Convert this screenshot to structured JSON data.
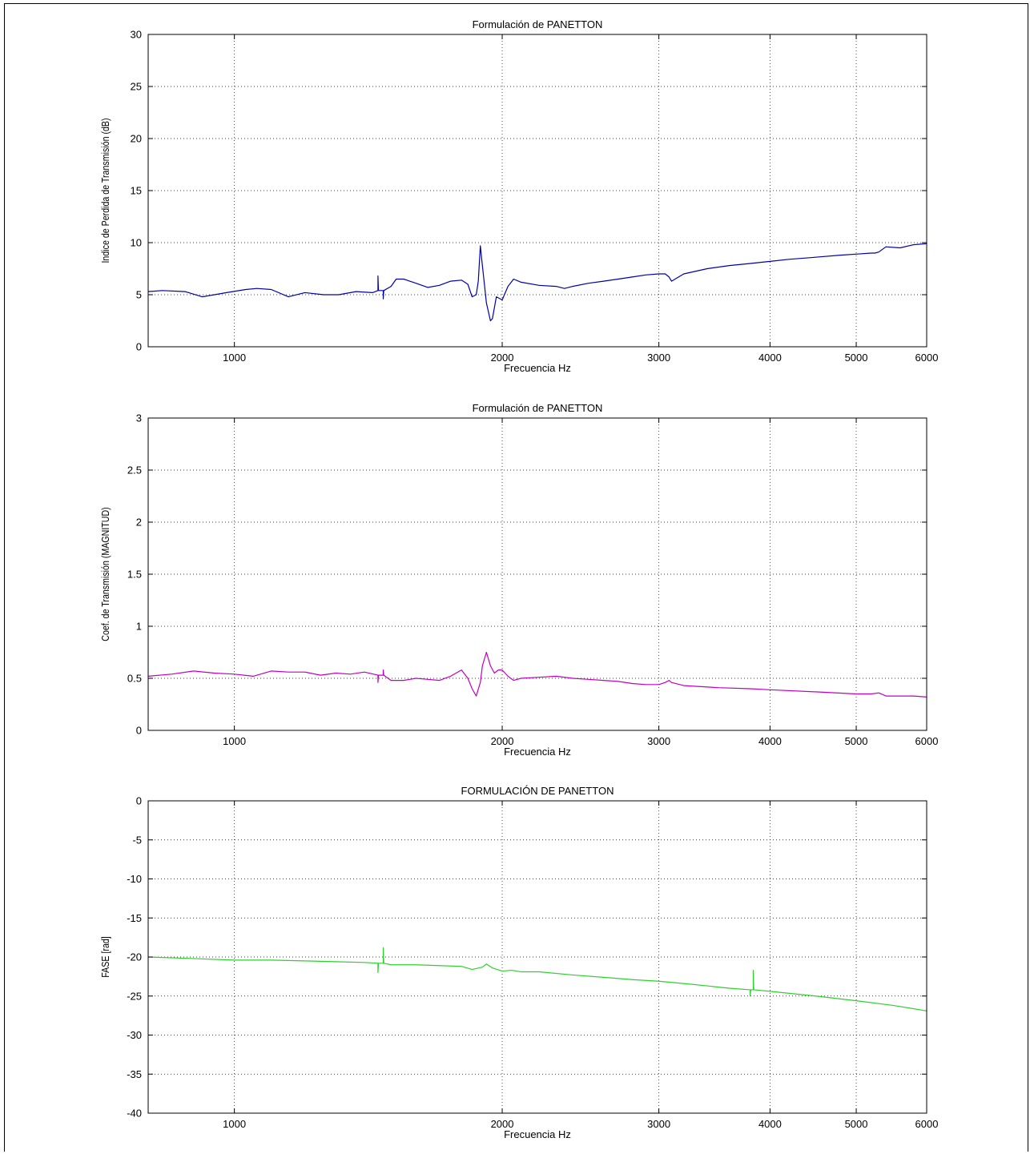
{
  "chart_data": [
    {
      "type": "line",
      "title": "Formulación de PANETTON",
      "xlabel": "Frecuencia Hz",
      "ylabel": "Indice de Perdida de Transmisión (dB)",
      "xscale": "log",
      "xlim": [
        800,
        6000
      ],
      "ylim": [
        0,
        30
      ],
      "xticks": [
        1000,
        2000,
        3000,
        4000,
        5000,
        6000
      ],
      "xtick_labels": [
        "1000",
        "2000",
        "3000",
        "4000",
        "5000",
        "6000"
      ],
      "yticks": [
        0,
        5,
        10,
        15,
        20,
        25,
        30
      ],
      "ytick_labels": [
        "0",
        "5",
        "10",
        "15",
        "20",
        "25",
        "30"
      ],
      "grid": true,
      "color": "#0000a8",
      "series": [
        {
          "x": [
            800,
            830,
            880,
            920,
            980,
            1030,
            1060,
            1100,
            1150,
            1200,
            1260,
            1310,
            1370,
            1430,
            1450,
            1450,
            1452,
            1470,
            1470,
            1472,
            1500,
            1520,
            1550,
            1600,
            1650,
            1700,
            1750,
            1800,
            1830,
            1850,
            1870,
            1880,
            1890,
            1900,
            1920,
            1940,
            1950,
            1970,
            2000,
            2030,
            2060,
            2100,
            2200,
            2300,
            2350,
            2400,
            2500,
            2600,
            2700,
            2800,
            2900,
            3000,
            3050,
            3080,
            3100,
            3200,
            3400,
            3600,
            3800,
            4000,
            4200,
            4500,
            4800,
            5000,
            5200,
            5250,
            5300,
            5400,
            5600,
            5800,
            6000
          ],
          "y": [
            5.3,
            5.4,
            5.3,
            4.8,
            5.2,
            5.5,
            5.6,
            5.5,
            4.8,
            5.2,
            5.0,
            5.0,
            5.3,
            5.2,
            5.4,
            6.8,
            5.4,
            5.4,
            4.6,
            5.4,
            5.8,
            6.5,
            6.5,
            6.1,
            5.7,
            5.9,
            6.3,
            6.4,
            6.0,
            4.8,
            5.0,
            6.3,
            9.7,
            7.8,
            4.2,
            2.5,
            2.7,
            4.8,
            4.5,
            5.8,
            6.5,
            6.2,
            5.9,
            5.8,
            5.6,
            5.8,
            6.1,
            6.3,
            6.5,
            6.7,
            6.9,
            7.0,
            7.0,
            6.7,
            6.3,
            7.0,
            7.5,
            7.8,
            8.0,
            8.2,
            8.4,
            8.6,
            8.8,
            8.9,
            9.0,
            9.0,
            9.1,
            9.6,
            9.5,
            9.8,
            9.9
          ]
        }
      ]
    },
    {
      "type": "line",
      "title": "Formulación de PANETTON",
      "xlabel": "Frecuencia Hz",
      "ylabel": "Coef. de Transmisión (MAGNITUD)",
      "xscale": "log",
      "xlim": [
        800,
        6000
      ],
      "ylim": [
        0,
        3
      ],
      "xticks": [
        1000,
        2000,
        3000,
        4000,
        5000,
        6000
      ],
      "xtick_labels": [
        "1000",
        "2000",
        "3000",
        "4000",
        "5000",
        "6000"
      ],
      "yticks": [
        0,
        0.5,
        1,
        1.5,
        2,
        2.5,
        3
      ],
      "ytick_labels": [
        "0",
        "0.5",
        "1",
        "1.5",
        "2",
        "2.5",
        "3"
      ],
      "grid": true,
      "color": "#c000c0",
      "series": [
        {
          "x": [
            800,
            850,
            900,
            950,
            1000,
            1050,
            1100,
            1150,
            1200,
            1250,
            1300,
            1350,
            1400,
            1450,
            1450,
            1452,
            1470,
            1470,
            1472,
            1500,
            1550,
            1600,
            1650,
            1700,
            1750,
            1800,
            1830,
            1850,
            1870,
            1890,
            1900,
            1920,
            1940,
            1960,
            1980,
            2000,
            2030,
            2060,
            2100,
            2200,
            2300,
            2400,
            2500,
            2600,
            2700,
            2800,
            2900,
            3000,
            3050,
            3080,
            3100,
            3200,
            3500,
            3800,
            4000,
            4500,
            5000,
            5200,
            5300,
            5400,
            5800,
            6000
          ],
          "y": [
            0.52,
            0.54,
            0.57,
            0.55,
            0.54,
            0.52,
            0.57,
            0.56,
            0.56,
            0.53,
            0.55,
            0.54,
            0.56,
            0.53,
            0.46,
            0.53,
            0.53,
            0.58,
            0.53,
            0.48,
            0.48,
            0.5,
            0.49,
            0.48,
            0.52,
            0.58,
            0.5,
            0.4,
            0.33,
            0.46,
            0.62,
            0.75,
            0.62,
            0.55,
            0.58,
            0.58,
            0.52,
            0.48,
            0.5,
            0.51,
            0.52,
            0.5,
            0.49,
            0.48,
            0.47,
            0.45,
            0.44,
            0.44,
            0.46,
            0.48,
            0.46,
            0.43,
            0.41,
            0.4,
            0.39,
            0.37,
            0.35,
            0.35,
            0.36,
            0.33,
            0.33,
            0.32
          ]
        }
      ]
    },
    {
      "type": "line",
      "title": "FORMULACIÓN DE PANETTON",
      "xlabel": "Frecuencia Hz",
      "ylabel": "FASE [rad]",
      "xscale": "log",
      "xlim": [
        800,
        6000
      ],
      "ylim": [
        -40,
        0
      ],
      "xticks": [
        1000,
        2000,
        3000,
        4000,
        5000,
        6000
      ],
      "xtick_labels": [
        "1000",
        "2000",
        "3000",
        "4000",
        "5000",
        "6000"
      ],
      "yticks": [
        -40,
        -35,
        -30,
        -25,
        -20,
        -15,
        -10,
        -5,
        0
      ],
      "ytick_labels": [
        "-40",
        "-35",
        "-30",
        "-25",
        "-20",
        "-15",
        "-10",
        "-5",
        "0"
      ],
      "grid": true,
      "color": "#2ed02e",
      "series": [
        {
          "x": [
            800,
            900,
            1000,
            1100,
            1200,
            1300,
            1400,
            1450,
            1450,
            1452,
            1470,
            1470,
            1472,
            1500,
            1600,
            1700,
            1800,
            1850,
            1900,
            1920,
            1950,
            2000,
            2050,
            2100,
            2200,
            2400,
            2600,
            2800,
            3000,
            3200,
            3400,
            3600,
            3800,
            3800,
            3805,
            3830,
            3830,
            3835,
            4000,
            4500,
            5000,
            5500,
            6000
          ],
          "y": [
            -20.0,
            -20.2,
            -20.4,
            -20.4,
            -20.5,
            -20.6,
            -20.7,
            -20.8,
            -22.0,
            -20.8,
            -20.8,
            -18.8,
            -20.8,
            -21.0,
            -21.0,
            -21.1,
            -21.2,
            -21.6,
            -21.3,
            -20.9,
            -21.4,
            -21.8,
            -21.7,
            -21.9,
            -21.9,
            -22.3,
            -22.6,
            -22.9,
            -23.1,
            -23.4,
            -23.7,
            -24.0,
            -24.2,
            -25.0,
            -24.2,
            -24.2,
            -21.7,
            -24.2,
            -24.4,
            -25.0,
            -25.6,
            -26.2,
            -26.9
          ]
        }
      ]
    }
  ]
}
